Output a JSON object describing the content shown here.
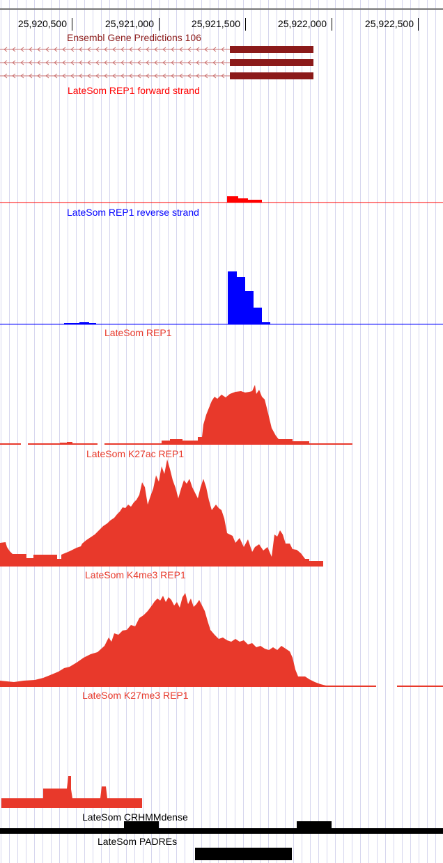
{
  "ruler": {
    "ticks": [
      {
        "label": "25,920,500",
        "pos": 25920500
      },
      {
        "label": "25,921,000",
        "pos": 25921000
      },
      {
        "label": "25,921,500",
        "pos": 25921500
      },
      {
        "label": "25,922,000",
        "pos": 25922000
      },
      {
        "label": "25,922,500",
        "pos": 25922500
      }
    ]
  },
  "tracks": {
    "gene_predictions": {
      "label": "Ensembl Gene Predictions 106",
      "color": "#8b1a1a",
      "transcripts": 3
    },
    "fwd": {
      "label": "LateSom REP1 forward strand",
      "color": "#ff0000"
    },
    "rev": {
      "label": "LateSom REP1 reverse strand",
      "color": "#0000ff"
    },
    "rep1": {
      "label": "LateSom REP1",
      "color": "#e8392b"
    },
    "k27ac": {
      "label": "LateSom K27ac REP1",
      "color": "#e8392b"
    },
    "k4me3": {
      "label": "LateSom K4me3 REP1",
      "color": "#e8392b"
    },
    "k27me3": {
      "label": "LateSom K27me3 REP1",
      "color": "#e8392b"
    },
    "crhmm": {
      "label": "LateSom CRHMMdense",
      "color": "#000000"
    },
    "padres": {
      "label": "LateSom PADREs",
      "color": "#000000"
    }
  }
}
